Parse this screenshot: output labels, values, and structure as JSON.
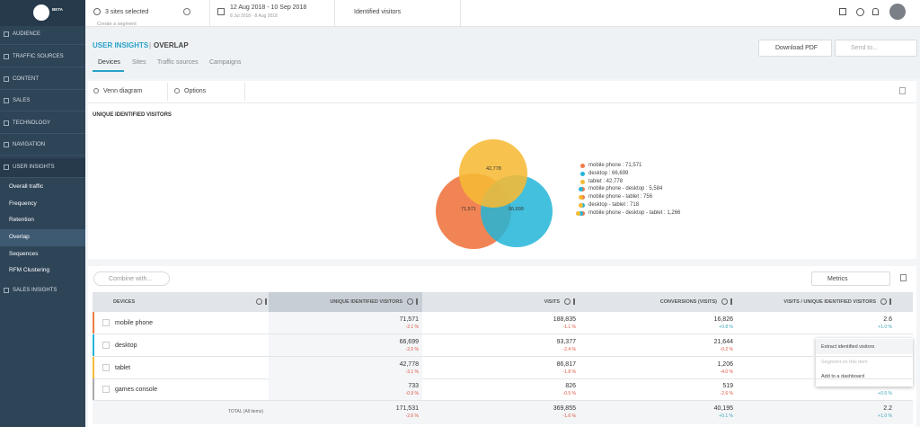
{
  "logo": {
    "badge": "BETA"
  },
  "topbar": {
    "sites": "3 sites selected",
    "period": "12 Aug 2018 - 10 Sep 2018",
    "comparison": "8 Jul 2018 - 8 Aug 2018",
    "segment": "Identified visitors",
    "create_segment": "Create a segment"
  },
  "sidebar": {
    "menu": [
      "AUDIENCE",
      "TRAFFIC SOURCES",
      "CONTENT",
      "SALES",
      "TECHNOLOGY",
      "NAVIGATION",
      "USER INSIGHTS"
    ],
    "submenu": [
      "Overall traffic",
      "Frequency",
      "Retention",
      "Overlap",
      "Sequences",
      "RFM Clustering"
    ],
    "last": "SALES INSIGHTS"
  },
  "header": {
    "section": "USER INSIGHTS",
    "separator": "|",
    "page": "OVERLAP",
    "download": "Download PDF",
    "send": "Send to..."
  },
  "tabs": [
    "Devices",
    "Sites",
    "Traffic sources",
    "Campaigns"
  ],
  "toolbar": {
    "view": "Venn diagram",
    "options": "Options"
  },
  "venn": {
    "title": "UNIQUE IDENTIFIED VISITORS",
    "labels": {
      "tablet": "42,778",
      "mobile": "71,571",
      "desktop": "66,699"
    },
    "legend": [
      "mobile phone : 71,571",
      "desktop : 66,699",
      "tablet : 42,778",
      "mobile phone - desktop : 5,584",
      "mobile phone - tablet : 756",
      "desktop - tablet : 718",
      "mobile phone - desktop - tablet : 1,266"
    ]
  },
  "table": {
    "combine": "Combine with...",
    "metrics": "Metrics",
    "headers": [
      "DEVICES",
      "UNIQUE IDENTIFIED VISITORS",
      "VISITS",
      "CONVERSIONS (VISITS)",
      "VISITS / UNIQUE IDENTIFIED VISITORS"
    ],
    "rows": [
      {
        "name": "mobile phone",
        "cells": [
          {
            "value": "71,571",
            "change": "-2.1 %"
          },
          {
            "value": "188,835",
            "change": "-1.1 %"
          },
          {
            "value": "16,826",
            "change": "+0.8 %"
          },
          {
            "value": "2.6",
            "change": "+1.0 %"
          }
        ]
      },
      {
        "name": "desktop",
        "cells": [
          {
            "value": "66,699",
            "change": "-2.5 %"
          },
          {
            "value": "93,377",
            "change": "-2.4 %"
          },
          {
            "value": "21,644",
            "change": "-0.2 %"
          }
        ]
      },
      {
        "name": "tablet",
        "cells": [
          {
            "value": "42,778",
            "change": "-3.1 %"
          },
          {
            "value": "86,817",
            "change": "-1.8 %"
          },
          {
            "value": "1,206",
            "change": "-4.0 %"
          }
        ]
      },
      {
        "name": "games console",
        "cells": [
          {
            "value": "733",
            "change": "-0.9 %"
          },
          {
            "value": "826",
            "change": "-0.5 %"
          },
          {
            "value": "519",
            "change": "-2.6 %"
          },
          {
            "change": "+0.5 %"
          }
        ]
      }
    ],
    "total": {
      "label": "TOTAL (All items)",
      "cells": [
        {
          "value": "171,531",
          "change": "-2.6 %"
        },
        {
          "value": "369,855",
          "change": "-1.6 %"
        },
        {
          "value": "40,195",
          "change": "+0.1 %"
        },
        {
          "value": "2.2",
          "change": "+1.0 %"
        }
      ]
    }
  },
  "context_menu": [
    "Extract identified visitors",
    "Segment on this item",
    "Add to a dashboard"
  ]
}
